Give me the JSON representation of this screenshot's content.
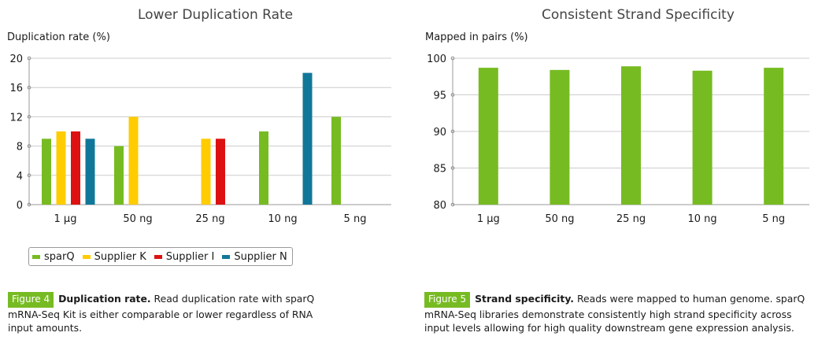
{
  "colors": {
    "sparq": "#77bb22",
    "supplier_k": "#ffcc00",
    "supplier_i": "#dd1111",
    "supplier_n": "#117799",
    "badge": "#77bb22",
    "grid": "#cccccc",
    "axis": "#999999"
  },
  "chart_data": [
    {
      "type": "bar",
      "title": "Lower Duplication Rate",
      "ylabel": "Duplication rate (%)",
      "xlabel": "",
      "categories": [
        "1 µg",
        "50 ng",
        "25 ng",
        "10 ng",
        "5 ng"
      ],
      "series": [
        {
          "name": "sparQ",
          "values": [
            9,
            8,
            null,
            10,
            12
          ]
        },
        {
          "name": "Supplier K",
          "values": [
            10,
            12,
            9,
            null,
            null
          ]
        },
        {
          "name": "Supplier I",
          "values": [
            10,
            null,
            9,
            null,
            null
          ]
        },
        {
          "name": "Supplier N",
          "values": [
            9,
            null,
            null,
            18,
            null
          ]
        }
      ],
      "ylim": [
        0,
        20
      ],
      "yticks": [
        0,
        4,
        8,
        12,
        16,
        20
      ],
      "grid": true,
      "legend": "bottom-left"
    },
    {
      "type": "bar",
      "title": "Consistent Strand Specificity",
      "ylabel": "Mapped in pairs (%)",
      "xlabel": "",
      "categories": [
        "1 µg",
        "50 ng",
        "25 ng",
        "10 ng",
        "5 ng"
      ],
      "series": [
        {
          "name": "sparQ",
          "values": [
            98.7,
            98.4,
            98.9,
            98.3,
            98.7
          ]
        }
      ],
      "ylim": [
        80,
        100
      ],
      "yticks": [
        80,
        85,
        90,
        95,
        100
      ],
      "grid": true,
      "legend": "none"
    }
  ],
  "legend": {
    "items": [
      {
        "label": "sparQ",
        "color_key": "sparq"
      },
      {
        "label": "Supplier K",
        "color_key": "supplier_k"
      },
      {
        "label": "Supplier I",
        "color_key": "supplier_i"
      },
      {
        "label": "Supplier N",
        "color_key": "supplier_n"
      }
    ]
  },
  "captions": {
    "left": {
      "badge": "Figure 4",
      "bold": "Duplication rate.",
      "text": " Read duplication rate with sparQ mRNA-Seq Kit is either comparable or lower regardless of RNA input amounts."
    },
    "right": {
      "badge": "Figure 5",
      "bold": "Strand specificity.",
      "text": " Reads were mapped to human genome. sparQ mRNA-Seq libraries demonstrate consistently high strand specificity across input levels allowing for high quality downstream gene expression analysis."
    }
  }
}
